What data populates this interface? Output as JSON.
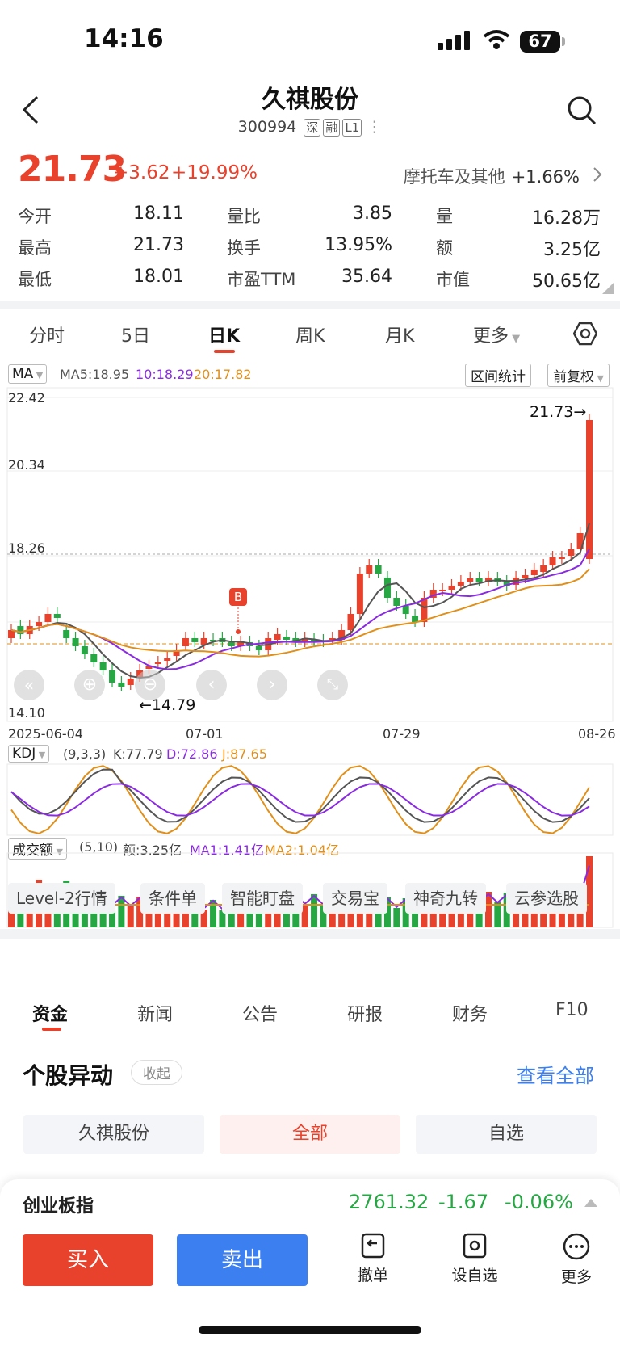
{
  "status_bar": {
    "time": "14:16",
    "battery": "67"
  },
  "header": {
    "name": "久祺股份",
    "code": "300994",
    "tags": [
      "深",
      "融",
      "L1"
    ]
  },
  "quote": {
    "price": "21.73",
    "change": "+3.62",
    "change_pct": "+19.99%",
    "sector": "摩托车及其他",
    "sector_change": "+1.66%",
    "rows": [
      [
        {
          "label": "今开",
          "value": "18.11",
          "color": "normal"
        },
        {
          "label": "量比",
          "value": "3.85"
        },
        {
          "label": "量",
          "value": "16.28万"
        }
      ],
      [
        {
          "label": "最高",
          "value": "21.73",
          "color": "red"
        },
        {
          "label": "换手",
          "value": "13.95%"
        },
        {
          "label": "额",
          "value": "3.25亿"
        }
      ],
      [
        {
          "label": "最低",
          "value": "18.01",
          "color": "green"
        },
        {
          "label": "市盈TTM",
          "value": "35.64"
        },
        {
          "label": "市值",
          "value": "50.65亿"
        }
      ]
    ]
  },
  "kline_tabs": [
    "分时",
    "5日",
    "日K",
    "周K",
    "月K",
    "更多"
  ],
  "ma_bar": {
    "name": "MA",
    "ma5": "MA5:18.95",
    "ma10": "10:18.29",
    "ma20": "20:17.82",
    "range_btn": "区间统计",
    "adjust_btn": "前复权"
  },
  "main_chart": {
    "ylabels": [
      "22.42",
      "20.34",
      "18.26",
      "14.10"
    ],
    "high_label": "21.73→",
    "low_label": "←14.79",
    "marker": "B",
    "dates": [
      "2025-06-04",
      "07-01",
      "07-29",
      "08-26"
    ]
  },
  "kdj": {
    "name": "KDJ",
    "params": "(9,3,3)",
    "k": "K:77.79",
    "d": "D:72.86",
    "j": "J:87.65"
  },
  "volume": {
    "name": "成交额",
    "params": "(5,10)",
    "amount": "额:3.25亿",
    "ma1": "MA1:1.41亿",
    "ma2": "MA2:1.04亿"
  },
  "tools": [
    "Level-2行情",
    "条件单",
    "智能盯盘",
    "交易宝",
    "神奇九转",
    "云参选股"
  ],
  "info_tabs": [
    "资金",
    "新闻",
    "公告",
    "研报",
    "财务",
    "F10"
  ],
  "section": {
    "title": "个股异动",
    "collapse": "收起",
    "view_all": "查看全部"
  },
  "filters": [
    "久祺股份",
    "全部",
    "自选"
  ],
  "index": {
    "name": "创业板指",
    "value": "2761.32",
    "change": "-1.67",
    "pct": "-0.06%"
  },
  "actions": {
    "buy": "买入",
    "sell": "卖出",
    "cancel": "撤单",
    "watch": "设自选",
    "more": "更多"
  },
  "colors": {
    "up": "#e8412c",
    "down": "#26a744",
    "ma5": "#555555",
    "ma10": "#8a2be2",
    "ma20": "#e0901a",
    "accent": "#3b7ff0"
  }
}
